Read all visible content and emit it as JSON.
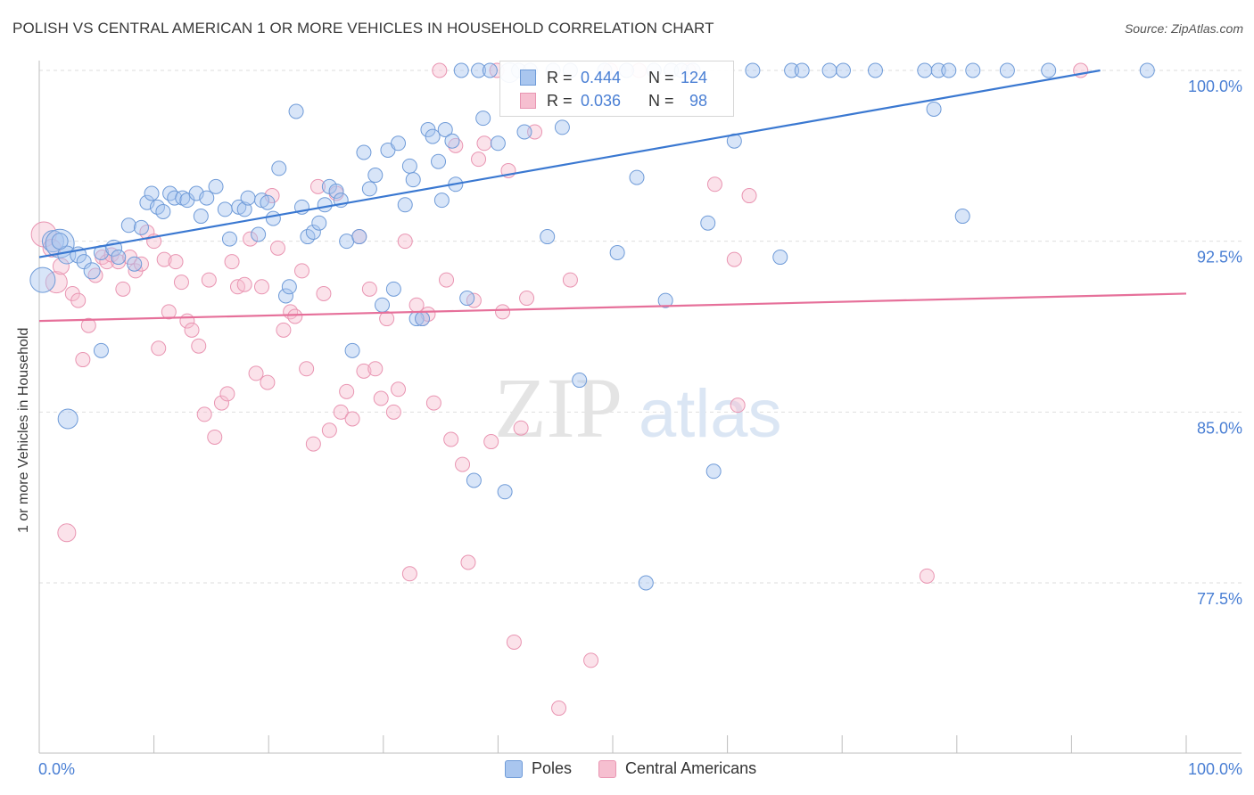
{
  "title": "POLISH VS CENTRAL AMERICAN 1 OR MORE VEHICLES IN HOUSEHOLD CORRELATION CHART",
  "source": "Source: ZipAtlas.com",
  "watermark": {
    "zip": "ZIP",
    "atlas": "atlas"
  },
  "colors": {
    "poles_fill": "#a9c6ef",
    "poles_stroke": "#6f9bd8",
    "poles_line": "#3a78d1",
    "ca_fill": "#f6bfd0",
    "ca_stroke": "#e995b2",
    "ca_line": "#e6709a",
    "tick_label": "#4a7fd4",
    "grid": "#dedede"
  },
  "legend": {
    "rows": [
      {
        "r_label": "R =",
        "r_value": "0.444",
        "n_label": "N =",
        "n_value": "124"
      },
      {
        "r_label": "R =",
        "r_value": "0.036",
        "n_label": "N =",
        "n_value": "98"
      }
    ]
  },
  "bottom_legend": {
    "poles": "Poles",
    "central_americans": "Central Americans"
  },
  "chart_data": {
    "type": "scatter",
    "title": "POLISH VS CENTRAL AMERICAN 1 OR MORE VEHICLES IN HOUSEHOLD CORRELATION CHART",
    "xlabel": "",
    "ylabel": "1 or more Vehicles in Household",
    "xlim": [
      0,
      100
    ],
    "ylim": [
      71.5,
      101
    ],
    "x_tick_labels": [
      "0.0%",
      "100.0%"
    ],
    "y_ticks": [
      77.5,
      85.0,
      92.5,
      100.0
    ],
    "y_tick_labels": [
      "77.5%",
      "85.0%",
      "92.5%",
      "100.0%"
    ],
    "grid": true,
    "legend_position": "top-center",
    "series": [
      {
        "name": "Poles",
        "trend": {
          "x0": 0,
          "y0": 91.8,
          "x1": 92.5,
          "y1": 100.0
        },
        "points": [
          [
            0.3,
            90.8,
            14
          ],
          [
            1.2,
            92.5,
            12
          ],
          [
            1.8,
            92.4,
            16
          ],
          [
            2.4,
            91.9,
            10
          ],
          [
            3.4,
            91.9,
            9
          ],
          [
            3.9,
            91.6,
            8
          ],
          [
            4.6,
            91.2,
            9
          ],
          [
            5.4,
            92.0,
            8
          ],
          [
            6.5,
            92.2,
            9
          ],
          [
            6.9,
            91.8,
            8
          ],
          [
            7.8,
            93.2,
            8
          ],
          [
            8.3,
            91.5,
            8
          ],
          [
            8.9,
            93.1,
            8
          ],
          [
            1.8,
            92.5,
            9
          ],
          [
            2.5,
            84.7,
            11
          ],
          [
            5.4,
            87.7,
            8
          ],
          [
            9.4,
            94.2,
            8
          ],
          [
            9.8,
            94.6,
            8
          ],
          [
            10.3,
            94.0,
            8
          ],
          [
            10.8,
            93.8,
            8
          ],
          [
            11.4,
            94.6,
            8
          ],
          [
            11.8,
            94.4,
            8
          ],
          [
            12.5,
            94.4,
            8
          ],
          [
            12.9,
            94.3,
            8
          ],
          [
            13.7,
            94.6,
            8
          ],
          [
            14.1,
            93.6,
            8
          ],
          [
            14.6,
            94.4,
            8
          ],
          [
            15.4,
            94.9,
            8
          ],
          [
            16.2,
            93.9,
            8
          ],
          [
            16.6,
            92.6,
            8
          ],
          [
            17.4,
            94.0,
            8
          ],
          [
            17.9,
            93.9,
            8
          ],
          [
            18.2,
            94.4,
            8
          ],
          [
            19.1,
            92.8,
            8
          ],
          [
            19.4,
            94.3,
            8
          ],
          [
            19.9,
            94.2,
            8
          ],
          [
            20.4,
            93.5,
            8
          ],
          [
            20.9,
            95.7,
            8
          ],
          [
            21.5,
            90.1,
            8
          ],
          [
            21.8,
            90.5,
            8
          ],
          [
            22.4,
            98.2,
            8
          ],
          [
            22.9,
            94.0,
            8
          ],
          [
            23.4,
            92.7,
            8
          ],
          [
            23.9,
            92.9,
            8
          ],
          [
            24.4,
            93.3,
            8
          ],
          [
            24.9,
            94.1,
            8
          ],
          [
            25.3,
            94.9,
            8
          ],
          [
            25.9,
            94.7,
            8
          ],
          [
            26.3,
            94.3,
            8
          ],
          [
            26.8,
            92.5,
            8
          ],
          [
            27.3,
            87.7,
            8
          ],
          [
            27.9,
            92.7,
            8
          ],
          [
            28.3,
            96.4,
            8
          ],
          [
            28.8,
            94.8,
            8
          ],
          [
            29.3,
            95.4,
            8
          ],
          [
            29.9,
            89.7,
            8
          ],
          [
            30.4,
            96.5,
            8
          ],
          [
            30.9,
            90.4,
            8
          ],
          [
            31.3,
            96.8,
            8
          ],
          [
            31.9,
            94.1,
            8
          ],
          [
            32.3,
            95.8,
            8
          ],
          [
            32.6,
            95.2,
            8
          ],
          [
            32.9,
            89.1,
            8
          ],
          [
            33.4,
            89.1,
            8
          ],
          [
            33.9,
            97.4,
            8
          ],
          [
            34.3,
            97.1,
            8
          ],
          [
            34.8,
            96.0,
            8
          ],
          [
            35.1,
            94.3,
            8
          ],
          [
            35.4,
            97.4,
            8
          ],
          [
            36.0,
            96.9,
            8
          ],
          [
            36.3,
            95.0,
            8
          ],
          [
            36.8,
            100.0,
            8
          ],
          [
            37.3,
            90.0,
            8
          ],
          [
            37.9,
            82.0,
            8
          ],
          [
            38.3,
            100.0,
            8
          ],
          [
            38.7,
            97.9,
            8
          ],
          [
            39.3,
            100.0,
            8
          ],
          [
            40.0,
            96.8,
            8
          ],
          [
            40.6,
            81.5,
            8
          ],
          [
            41.0,
            99.9,
            11
          ],
          [
            41.8,
            100.0,
            8
          ],
          [
            42.3,
            97.3,
            8
          ],
          [
            42.8,
            100.0,
            8
          ],
          [
            44.3,
            92.7,
            8
          ],
          [
            44.8,
            100.0,
            8
          ],
          [
            45.6,
            97.5,
            8
          ],
          [
            46.3,
            100.0,
            8
          ],
          [
            47.1,
            86.4,
            8
          ],
          [
            49.3,
            100.0,
            8
          ],
          [
            50.4,
            92.0,
            8
          ],
          [
            51.2,
            100.0,
            8
          ],
          [
            52.1,
            95.3,
            8
          ],
          [
            52.9,
            77.5,
            8
          ],
          [
            53.6,
            100.0,
            8
          ],
          [
            54.6,
            89.9,
            8
          ],
          [
            55.1,
            100.0,
            8
          ],
          [
            56.0,
            100.0,
            8
          ],
          [
            57.0,
            100.0,
            8
          ],
          [
            58.3,
            93.3,
            8
          ],
          [
            58.8,
            82.4,
            8
          ],
          [
            60.6,
            96.9,
            8
          ],
          [
            62.2,
            100.0,
            8
          ],
          [
            64.6,
            91.8,
            8
          ],
          [
            65.6,
            100.0,
            8
          ],
          [
            66.5,
            100.0,
            8
          ],
          [
            68.9,
            100.0,
            8
          ],
          [
            70.1,
            100.0,
            8
          ],
          [
            72.9,
            100.0,
            8
          ],
          [
            77.2,
            100.0,
            8
          ],
          [
            78.0,
            98.3,
            8
          ],
          [
            78.4,
            100.0,
            8
          ],
          [
            79.3,
            100.0,
            8
          ],
          [
            81.4,
            100.0,
            8
          ],
          [
            80.5,
            93.6,
            8
          ],
          [
            84.4,
            100.0,
            8
          ],
          [
            88.0,
            100.0,
            8
          ],
          [
            96.6,
            100.0,
            8
          ]
        ]
      },
      {
        "name": "Central Americans",
        "trend": {
          "x0": 0,
          "y0": 89.0,
          "x1": 100,
          "y1": 90.2
        },
        "points": [
          [
            0.4,
            92.8,
            14
          ],
          [
            1.1,
            92.2,
            10
          ],
          [
            1.5,
            90.7,
            12
          ],
          [
            1.9,
            91.4,
            9
          ],
          [
            2.4,
            79.7,
            10
          ],
          [
            2.9,
            90.2,
            8
          ],
          [
            3.4,
            89.9,
            8
          ],
          [
            3.8,
            87.3,
            8
          ],
          [
            4.3,
            88.8,
            8
          ],
          [
            4.9,
            91.0,
            8
          ],
          [
            5.5,
            91.8,
            8
          ],
          [
            5.9,
            91.6,
            8
          ],
          [
            6.3,
            91.9,
            8
          ],
          [
            6.9,
            91.6,
            8
          ],
          [
            7.3,
            90.4,
            8
          ],
          [
            7.9,
            91.8,
            8
          ],
          [
            8.4,
            91.2,
            8
          ],
          [
            8.9,
            91.5,
            8
          ],
          [
            9.4,
            92.9,
            8
          ],
          [
            10.0,
            92.5,
            8
          ],
          [
            10.4,
            87.8,
            8
          ],
          [
            10.9,
            91.7,
            8
          ],
          [
            11.3,
            89.4,
            8
          ],
          [
            11.9,
            91.6,
            8
          ],
          [
            12.4,
            90.7,
            8
          ],
          [
            12.9,
            89.0,
            8
          ],
          [
            13.3,
            88.6,
            8
          ],
          [
            13.9,
            87.9,
            8
          ],
          [
            14.4,
            84.9,
            8
          ],
          [
            14.8,
            90.8,
            8
          ],
          [
            15.3,
            83.9,
            8
          ],
          [
            15.9,
            85.4,
            8
          ],
          [
            16.4,
            85.8,
            8
          ],
          [
            16.8,
            91.6,
            8
          ],
          [
            17.3,
            90.5,
            8
          ],
          [
            17.9,
            90.6,
            8
          ],
          [
            18.4,
            92.6,
            8
          ],
          [
            18.9,
            86.7,
            8
          ],
          [
            19.4,
            90.5,
            8
          ],
          [
            19.9,
            86.3,
            8
          ],
          [
            20.3,
            94.5,
            8
          ],
          [
            20.8,
            92.2,
            8
          ],
          [
            21.3,
            88.6,
            8
          ],
          [
            21.9,
            89.4,
            8
          ],
          [
            22.3,
            89.2,
            8
          ],
          [
            22.9,
            91.2,
            8
          ],
          [
            23.3,
            86.9,
            8
          ],
          [
            23.9,
            83.6,
            8
          ],
          [
            24.3,
            94.9,
            8
          ],
          [
            24.8,
            90.2,
            8
          ],
          [
            25.3,
            84.2,
            8
          ],
          [
            25.9,
            94.6,
            8
          ],
          [
            26.3,
            85.0,
            8
          ],
          [
            26.8,
            85.9,
            8
          ],
          [
            27.3,
            84.7,
            8
          ],
          [
            27.9,
            92.7,
            8
          ],
          [
            28.3,
            86.8,
            8
          ],
          [
            28.8,
            90.4,
            8
          ],
          [
            29.3,
            86.9,
            8
          ],
          [
            29.8,
            85.6,
            8
          ],
          [
            30.3,
            89.1,
            8
          ],
          [
            30.9,
            85.0,
            8
          ],
          [
            31.3,
            86.0,
            8
          ],
          [
            31.9,
            92.5,
            8
          ],
          [
            32.3,
            77.9,
            8
          ],
          [
            32.9,
            89.7,
            8
          ],
          [
            33.4,
            89.1,
            8
          ],
          [
            33.9,
            89.3,
            8
          ],
          [
            34.4,
            85.4,
            8
          ],
          [
            34.9,
            100.0,
            8
          ],
          [
            35.5,
            90.8,
            8
          ],
          [
            35.9,
            83.8,
            8
          ],
          [
            36.3,
            96.7,
            8
          ],
          [
            36.9,
            82.7,
            8
          ],
          [
            37.4,
            78.4,
            8
          ],
          [
            37.9,
            89.9,
            8
          ],
          [
            38.3,
            96.1,
            8
          ],
          [
            38.8,
            96.8,
            8
          ],
          [
            39.4,
            83.7,
            8
          ],
          [
            39.9,
            100.0,
            8
          ],
          [
            40.4,
            89.4,
            8
          ],
          [
            40.9,
            95.6,
            8
          ],
          [
            41.4,
            74.9,
            8
          ],
          [
            42.0,
            84.3,
            8
          ],
          [
            42.5,
            90.0,
            8
          ],
          [
            43.2,
            97.3,
            8
          ],
          [
            45.3,
            72.0,
            8
          ],
          [
            46.3,
            90.8,
            8
          ],
          [
            48.1,
            74.1,
            8
          ],
          [
            49.8,
            100.0,
            8
          ],
          [
            52.3,
            100.0,
            8
          ],
          [
            56.6,
            100.0,
            8
          ],
          [
            58.9,
            95.0,
            8
          ],
          [
            60.6,
            91.7,
            8
          ],
          [
            60.9,
            85.3,
            8
          ],
          [
            61.9,
            94.5,
            8
          ],
          [
            77.4,
            77.8,
            8
          ],
          [
            90.8,
            100.0,
            8
          ]
        ]
      }
    ]
  }
}
